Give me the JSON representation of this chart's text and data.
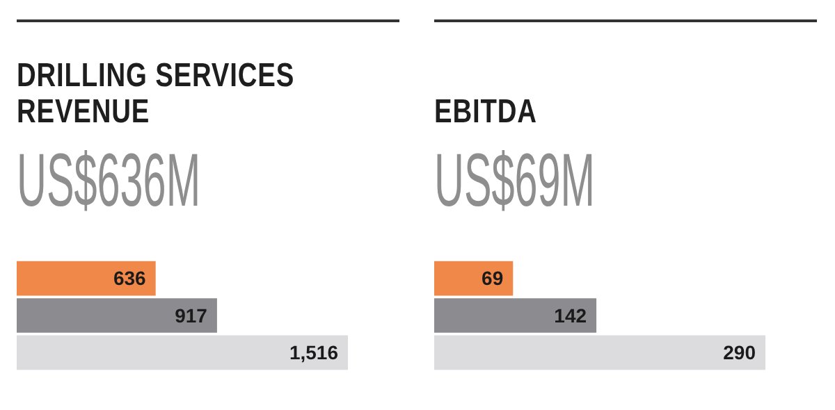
{
  "chart_data": [
    {
      "type": "bar",
      "orientation": "horizontal",
      "title": "DRILLING SERVICES REVENUE",
      "subtitle": "US$636M",
      "categories": [
        null,
        null,
        null
      ],
      "values": [
        636,
        917,
        1516
      ],
      "colors": [
        "#f0884a",
        "#8c8b90",
        "#dcdcde"
      ],
      "value_labels": [
        "636",
        "917",
        "1,516"
      ]
    },
    {
      "type": "bar",
      "orientation": "horizontal",
      "title": "EBITDA",
      "subtitle": "US$69M",
      "categories": [
        null,
        null,
        null
      ],
      "values": [
        69,
        142,
        290
      ],
      "colors": [
        "#f0884a",
        "#8c8b90",
        "#dcdcde"
      ],
      "value_labels": [
        "69",
        "142",
        "290"
      ]
    }
  ]
}
